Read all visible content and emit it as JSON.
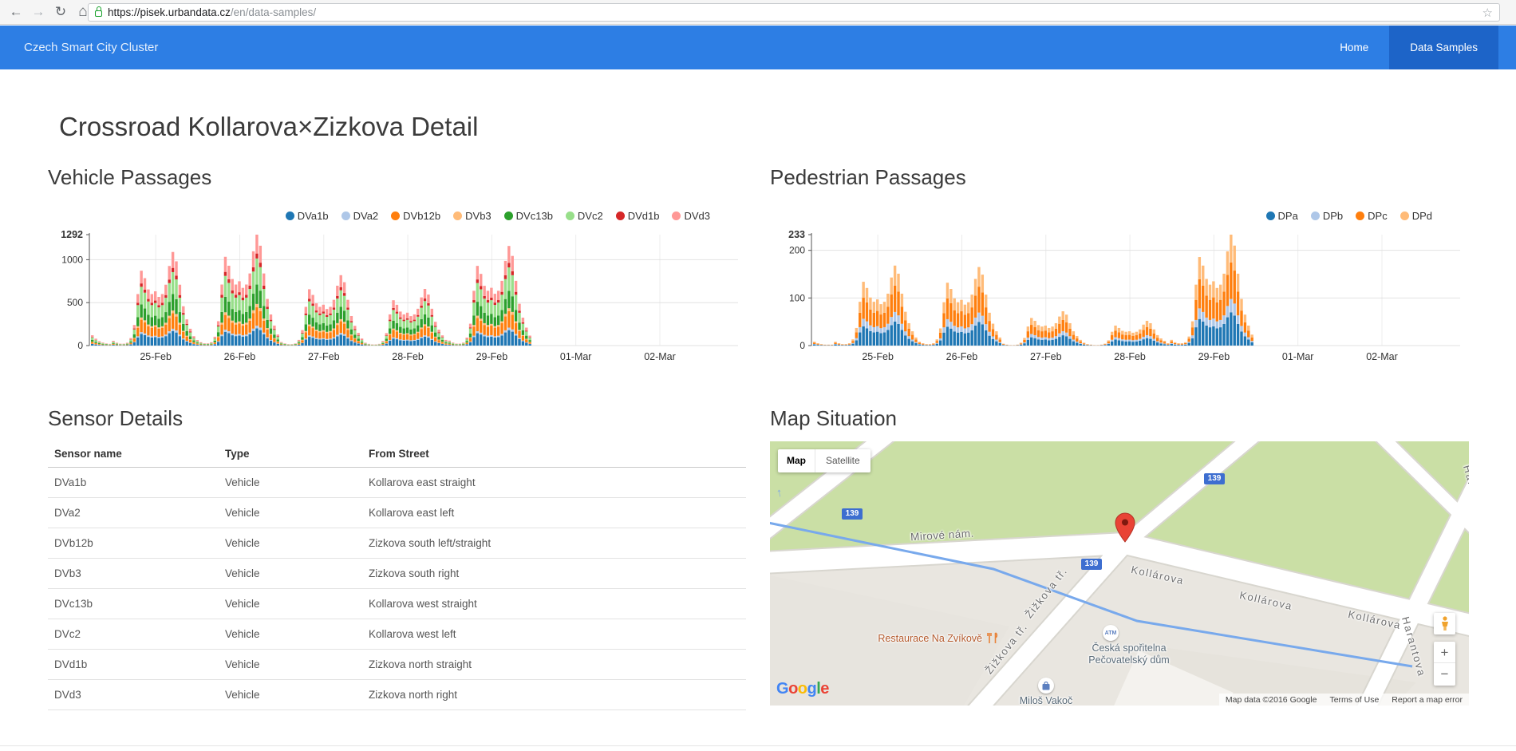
{
  "browser": {
    "url_host": "https://pisek.urbandata.cz",
    "url_path": "/en/data-samples/"
  },
  "navbar": {
    "brand": "Czech Smart City Cluster",
    "items": [
      {
        "label": "Home",
        "active": false
      },
      {
        "label": "Data Samples",
        "active": true
      }
    ]
  },
  "page": {
    "title": "Crossroad Kollarova×Zizkova Detail"
  },
  "sections": {
    "vehicle_heading": "Vehicle Passages",
    "pedestrian_heading": "Pedestrian Passages",
    "sensors_heading": "Sensor Details",
    "map_heading": "Map Situation"
  },
  "chart_data": [
    {
      "type": "bar",
      "stacked": true,
      "title": "Vehicle Passages",
      "x_unit": "hour",
      "x_start": "24-Feb 18:00",
      "xticks": [
        "25-Feb",
        "26-Feb",
        "27-Feb",
        "28-Feb",
        "29-Feb",
        "01-Mar",
        "02-Mar"
      ],
      "yticks": [
        0,
        500,
        1000
      ],
      "ymax": 1292,
      "grid": true,
      "legend_position": "top-right",
      "series": [
        {
          "name": "DVa1b",
          "color": "#1f77b4",
          "fraction": 0.155
        },
        {
          "name": "DVa2",
          "color": "#aec7e8",
          "fraction": 0.025
        },
        {
          "name": "DVb12b",
          "color": "#ff7f0e",
          "fraction": 0.165
        },
        {
          "name": "DVb3",
          "color": "#ffbb78",
          "fraction": 0.03
        },
        {
          "name": "DVc13b",
          "color": "#2ca02c",
          "fraction": 0.175
        },
        {
          "name": "DVc2",
          "color": "#98df8a",
          "fraction": 0.235
        },
        {
          "name": "DVd1b",
          "color": "#d62728",
          "fraction": 0.045
        },
        {
          "name": "DVd3",
          "color": "#ff9896",
          "fraction": 0.17
        }
      ],
      "hourly_totals": [
        120,
        80,
        50,
        35,
        25,
        20,
        55,
        33,
        22,
        22,
        33,
        87,
        240,
        600,
        872,
        785,
        654,
        600,
        632,
        567,
        600,
        709,
        927,
        1090,
        981,
        709,
        458,
        305,
        196,
        109,
        65,
        39,
        26,
        26,
        39,
        103,
        284,
        711,
        1034,
        930,
        775,
        711,
        749,
        672,
        711,
        840,
        1098,
        1292,
        1163,
        840,
        543,
        362,
        233,
        129,
        41,
        25,
        16,
        16,
        25,
        66,
        180,
        451,
        656,
        590,
        492,
        451,
        476,
        426,
        451,
        533,
        697,
        820,
        738,
        533,
        344,
        230,
        148,
        82,
        33,
        20,
        13,
        13,
        20,
        53,
        145,
        363,
        528,
        475,
        396,
        363,
        383,
        343,
        363,
        429,
        561,
        660,
        594,
        429,
        277,
        185,
        119,
        66,
        58,
        35,
        23,
        23,
        35,
        93,
        255,
        638,
        928,
        835,
        696,
        638,
        673,
        603,
        638,
        754,
        986,
        1160,
        1044,
        754,
        487,
        325,
        209,
        116
      ]
    },
    {
      "type": "bar",
      "stacked": true,
      "title": "Pedestrian Passages",
      "x_unit": "hour",
      "x_start": "24-Feb 18:00",
      "xticks": [
        "25-Feb",
        "26-Feb",
        "27-Feb",
        "28-Feb",
        "29-Feb",
        "01-Mar",
        "02-Mar"
      ],
      "yticks": [
        0,
        100,
        200
      ],
      "ymax": 233,
      "grid": true,
      "legend_position": "top-right",
      "series": [
        {
          "name": "DPa",
          "color": "#1f77b4",
          "fraction": 0.3
        },
        {
          "name": "DPb",
          "color": "#aec7e8",
          "fraction": 0.12
        },
        {
          "name": "DPc",
          "color": "#ff7f0e",
          "fraction": 0.33
        },
        {
          "name": "DPd",
          "color": "#ffbb78",
          "fraction": 0.25
        }
      ],
      "hourly_totals": [
        8,
        5,
        3,
        2,
        2,
        2,
        8,
        5,
        3,
        3,
        5,
        13,
        37,
        92,
        134,
        121,
        101,
        92,
        97,
        87,
        92,
        109,
        143,
        168,
        151,
        109,
        71,
        47,
        30,
        17,
        8,
        5,
        3,
        3,
        5,
        13,
        36,
        91,
        132,
        119,
        99,
        91,
        96,
        86,
        91,
        107,
        140,
        165,
        149,
        107,
        69,
        46,
        30,
        17,
        4,
        2,
        1,
        1,
        2,
        6,
        16,
        40,
        58,
        52,
        43,
        40,
        42,
        37,
        40,
        47,
        61,
        72,
        65,
        47,
        30,
        20,
        12,
        6,
        3,
        2,
        1,
        1,
        2,
        4,
        11,
        29,
        42,
        37,
        31,
        29,
        30,
        27,
        29,
        34,
        44,
        52,
        47,
        34,
        22,
        15,
        10,
        5,
        12,
        7,
        5,
        5,
        7,
        19,
        51,
        128,
        186,
        168,
        140,
        128,
        135,
        121,
        128,
        151,
        198,
        233,
        210,
        151,
        98,
        65,
        42,
        23
      ]
    }
  ],
  "sensor_table": {
    "columns": [
      "Sensor name",
      "Type",
      "From Street"
    ],
    "rows": [
      {
        "name": "DVa1b",
        "type": "Vehicle",
        "street": "Kollarova east straight"
      },
      {
        "name": "DVa2",
        "type": "Vehicle",
        "street": "Kollarova east left"
      },
      {
        "name": "DVb12b",
        "type": "Vehicle",
        "street": "Zizkova south left/straight"
      },
      {
        "name": "DVb3",
        "type": "Vehicle",
        "street": "Zizkova south right"
      },
      {
        "name": "DVc13b",
        "type": "Vehicle",
        "street": "Kollarova west straight"
      },
      {
        "name": "DVc2",
        "type": "Vehicle",
        "street": "Kollarova west left"
      },
      {
        "name": "DVd1b",
        "type": "Vehicle",
        "street": "Zizkova north straight"
      },
      {
        "name": "DVd3",
        "type": "Vehicle",
        "street": "Zizkova north right"
      }
    ]
  },
  "map": {
    "controls": {
      "map_label": "Map",
      "satellite_label": "Satellite",
      "zoom_in": "+",
      "zoom_out": "−"
    },
    "route_shield": "139",
    "streets": {
      "mirove": "Mirové nám.",
      "kollarova": "Kollárova",
      "zizkova": "Žižkova tř.",
      "harantova": "Harantova"
    },
    "poi": {
      "restaurant": "Restaurace Na Zvíkově",
      "atm_badge": "ATM",
      "bank_line1": "Česká spořitelna",
      "bank_line2": "Pečovatelský dům",
      "shop": "Miloš Vakoč"
    },
    "google_logo": "Google",
    "google_colors": [
      "#4285F4",
      "#EA4335",
      "#FBBC05",
      "#4285F4",
      "#34A853",
      "#EA4335"
    ],
    "attribution": {
      "map_data": "Map data ©2016 Google",
      "terms": "Terms of Use",
      "report": "Report a map error"
    }
  },
  "colors": {
    "navbar_bg": "#2d7ee4",
    "navbar_active_bg": "#1d64c8",
    "map_park_green": "#cadfa5",
    "map_river_blue": "#78a9ec",
    "shield_blue": "#3d6ed0"
  }
}
